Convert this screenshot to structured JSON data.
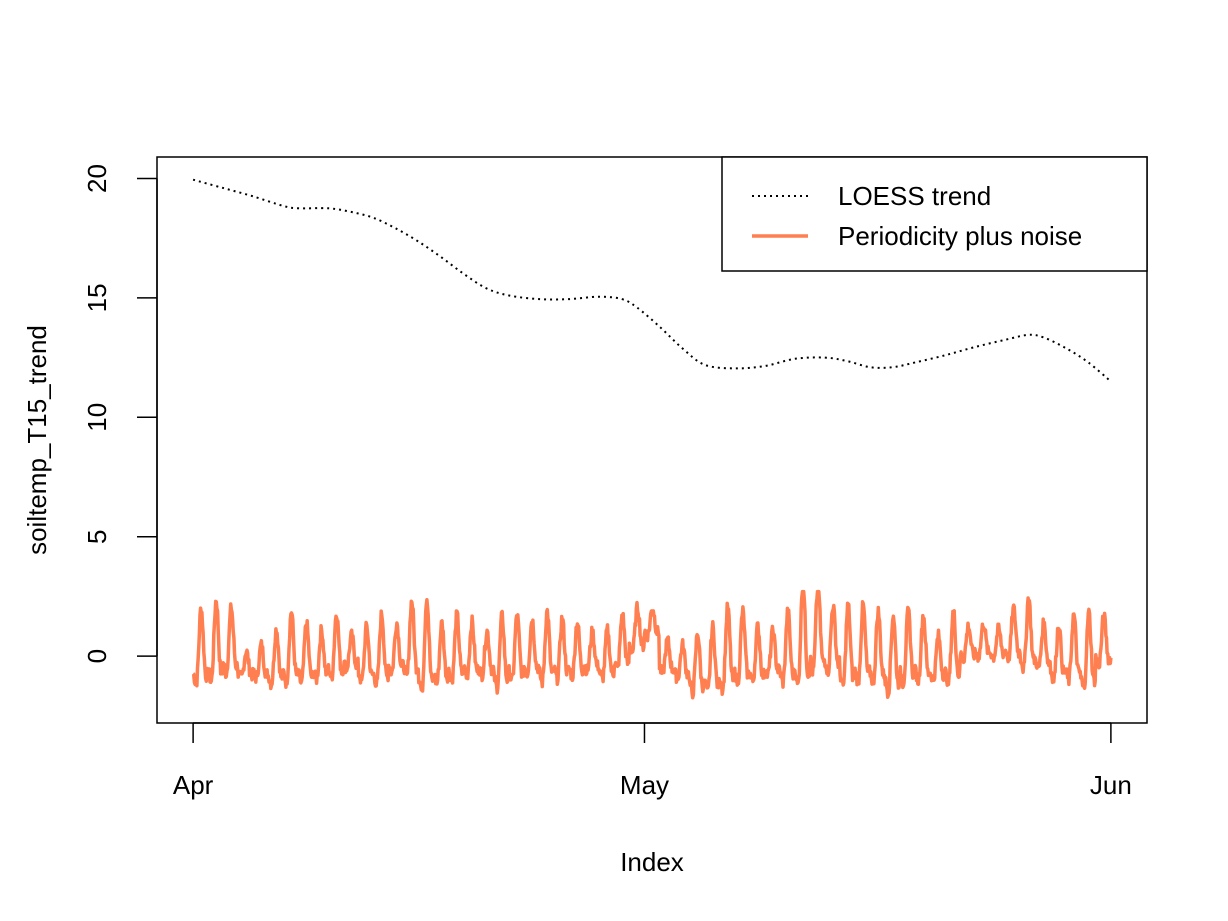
{
  "chart_data": {
    "type": "line",
    "title": "",
    "xlabel": "Index",
    "ylabel": "soiltemp_T15_trend",
    "x_ticks": [
      {
        "label": "Apr",
        "day": 0
      },
      {
        "label": "May",
        "day": 30
      },
      {
        "label": "Jun",
        "day": 61
      }
    ],
    "xlim": [
      -2.4,
      63.4
    ],
    "y_ticks": [
      0,
      5,
      10,
      15,
      20
    ],
    "ylim": [
      -2.8,
      20.9
    ],
    "grid": false,
    "legend": {
      "placement": "top-right",
      "entries": [
        {
          "label": "LOESS trend",
          "style": "dotted",
          "color": "#000000"
        },
        {
          "label": "Periodicity plus noise",
          "style": "solid",
          "color": "#FF7F50"
        }
      ]
    },
    "series": [
      {
        "name": "LOESS trend",
        "color": "#000000",
        "style": "dotted",
        "points": [
          [
            0,
            19.95
          ],
          [
            2,
            19.6
          ],
          [
            4,
            19.25
          ],
          [
            6,
            18.85
          ],
          [
            7,
            18.75
          ],
          [
            9,
            18.75
          ],
          [
            10.5,
            18.6
          ],
          [
            12,
            18.35
          ],
          [
            13.5,
            17.9
          ],
          [
            15,
            17.35
          ],
          [
            16.5,
            16.7
          ],
          [
            18,
            16.0
          ],
          [
            19.5,
            15.4
          ],
          [
            21,
            15.1
          ],
          [
            23,
            14.95
          ],
          [
            25,
            14.95
          ],
          [
            27,
            15.05
          ],
          [
            28.5,
            14.95
          ],
          [
            29.5,
            14.6
          ],
          [
            31,
            13.8
          ],
          [
            32.5,
            12.9
          ],
          [
            34,
            12.2
          ],
          [
            36,
            12.05
          ],
          [
            38,
            12.15
          ],
          [
            40,
            12.45
          ],
          [
            42,
            12.5
          ],
          [
            43.5,
            12.35
          ],
          [
            45,
            12.1
          ],
          [
            46.5,
            12.1
          ],
          [
            48,
            12.3
          ],
          [
            50,
            12.6
          ],
          [
            52,
            12.95
          ],
          [
            54,
            13.25
          ],
          [
            55.5,
            13.45
          ],
          [
            56.5,
            13.35
          ],
          [
            58,
            12.9
          ],
          [
            59.5,
            12.3
          ],
          [
            61,
            11.5
          ]
        ]
      },
      {
        "name": "Periodicity plus noise",
        "color": "#FF7F50",
        "style": "solid",
        "generated": {
          "start_day": 0,
          "end_day": 61,
          "daily_amplitude": [
            1.4,
            1.5,
            1.2,
            0.5,
            0.6,
            1.0,
            1.3,
            1.1,
            0.9,
            1.2,
            0.6,
            1.0,
            1.3,
            0.9,
            1.4,
            1.7,
            1.1,
            1.2,
            1.0,
            0.8,
            1.3,
            1.2,
            1.0,
            1.3,
            1.1,
            1.0,
            0.7,
            0.9,
            1.0,
            0.8,
            0.5,
            0.6,
            0.6,
            1.1,
            1.2,
            1.5,
            1.3,
            1.0,
            0.8,
            1.3,
            1.9,
            1.6,
            1.2,
            1.5,
            1.4,
            1.3,
            1.4,
            1.3,
            1.2,
            0.8,
            1.3,
            0.6,
            0.6,
            0.5,
            0.9,
            1.3,
            0.8,
            1.0,
            1.2,
            1.4,
            0.9
          ],
          "daily_offset": [
            0.0,
            0.2,
            0.3,
            -0.5,
            -0.4,
            -0.3,
            0.0,
            -0.2,
            -0.2,
            0.1,
            0.0,
            -0.2,
            -0.1,
            0.1,
            0.3,
            0.0,
            -0.2,
            0.0,
            0.0,
            -0.1,
            -0.2,
            0.0,
            0.1,
            0.0,
            0.0,
            0.0,
            0.0,
            -0.2,
            0.3,
            0.9,
            1.3,
            -0.2,
            -0.4,
            -0.6,
            -0.5,
            -0.1,
            0.0,
            -0.2,
            -0.1,
            0.0,
            0.4,
            0.7,
            0.4,
            0.0,
            0.1,
            0.0,
            -0.3,
            0.0,
            0.0,
            -0.3,
            0.0,
            0.4,
            0.5,
            0.4,
            0.7,
            0.6,
            0.2,
            -0.1,
            0.0,
            -0.2,
            0.4
          ],
          "range": [
            -1.8,
            2.7
          ]
        }
      }
    ]
  }
}
